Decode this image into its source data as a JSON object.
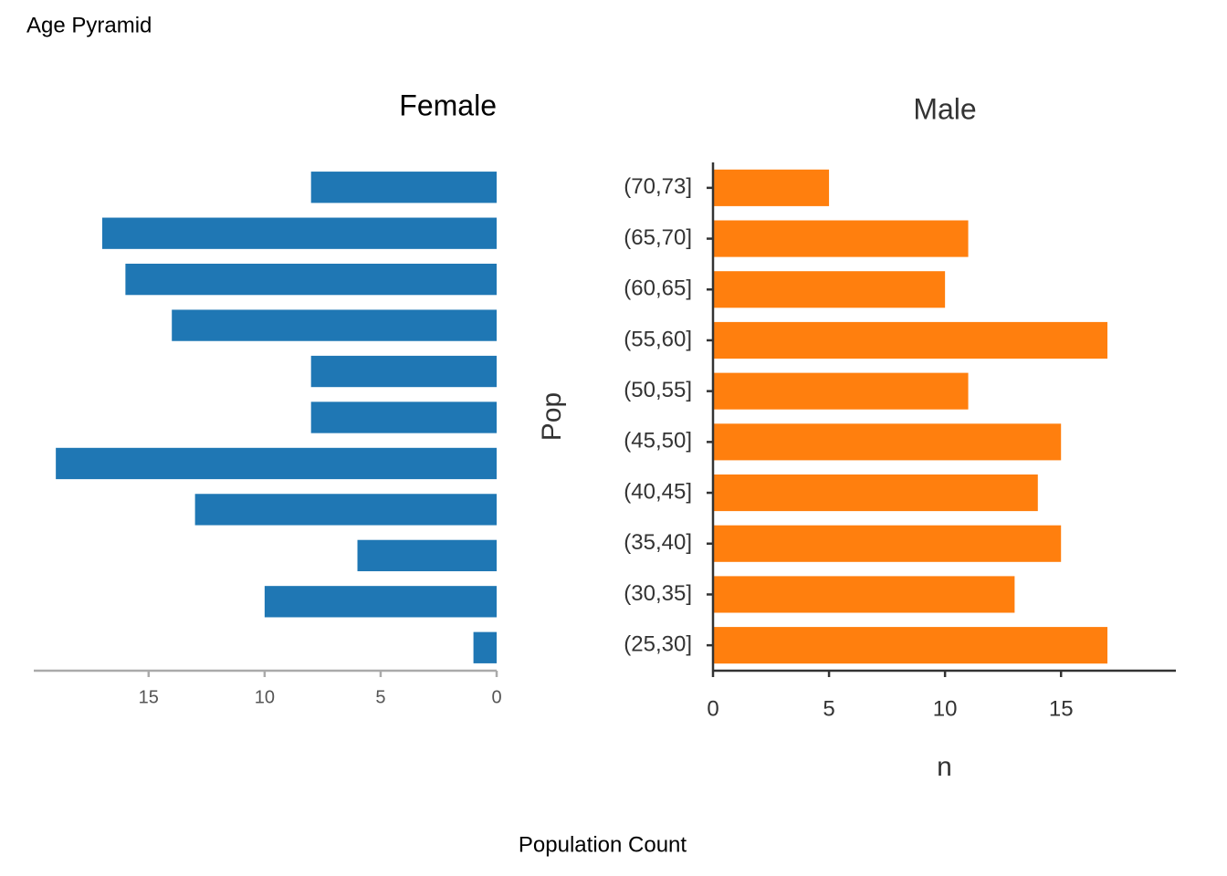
{
  "title": "Age Pyramid",
  "xlabel": "Population Count",
  "chart_data": [
    {
      "type": "bar",
      "horizontal": true,
      "reversed": true,
      "title": "Female",
      "color": "#1f77b4",
      "categories": [
        null,
        null,
        null,
        null,
        null,
        null,
        null,
        null,
        null,
        null,
        null
      ],
      "values": [
        1,
        10,
        6,
        13,
        19,
        8,
        8,
        14,
        16,
        17,
        8
      ],
      "xlim": [
        0,
        19.95
      ],
      "xticks": [
        0,
        5,
        10,
        15
      ]
    },
    {
      "type": "bar",
      "horizontal": true,
      "reversed": false,
      "title": "Male",
      "color": "#ff7f0e",
      "xlabel": "n",
      "ylabel": "Pop",
      "categories": [
        "(25,30]",
        "(30,35]",
        "(35,40]",
        "(40,45]",
        "(45,50]",
        "(50,55]",
        "(55,60]",
        "(60,65]",
        "(65,70]",
        "(70,73]"
      ],
      "values": [
        17,
        13,
        15,
        14,
        15,
        11,
        17,
        10,
        11,
        5
      ],
      "xlim": [
        0,
        19.95
      ],
      "xticks": [
        0,
        5,
        10,
        15
      ]
    }
  ]
}
